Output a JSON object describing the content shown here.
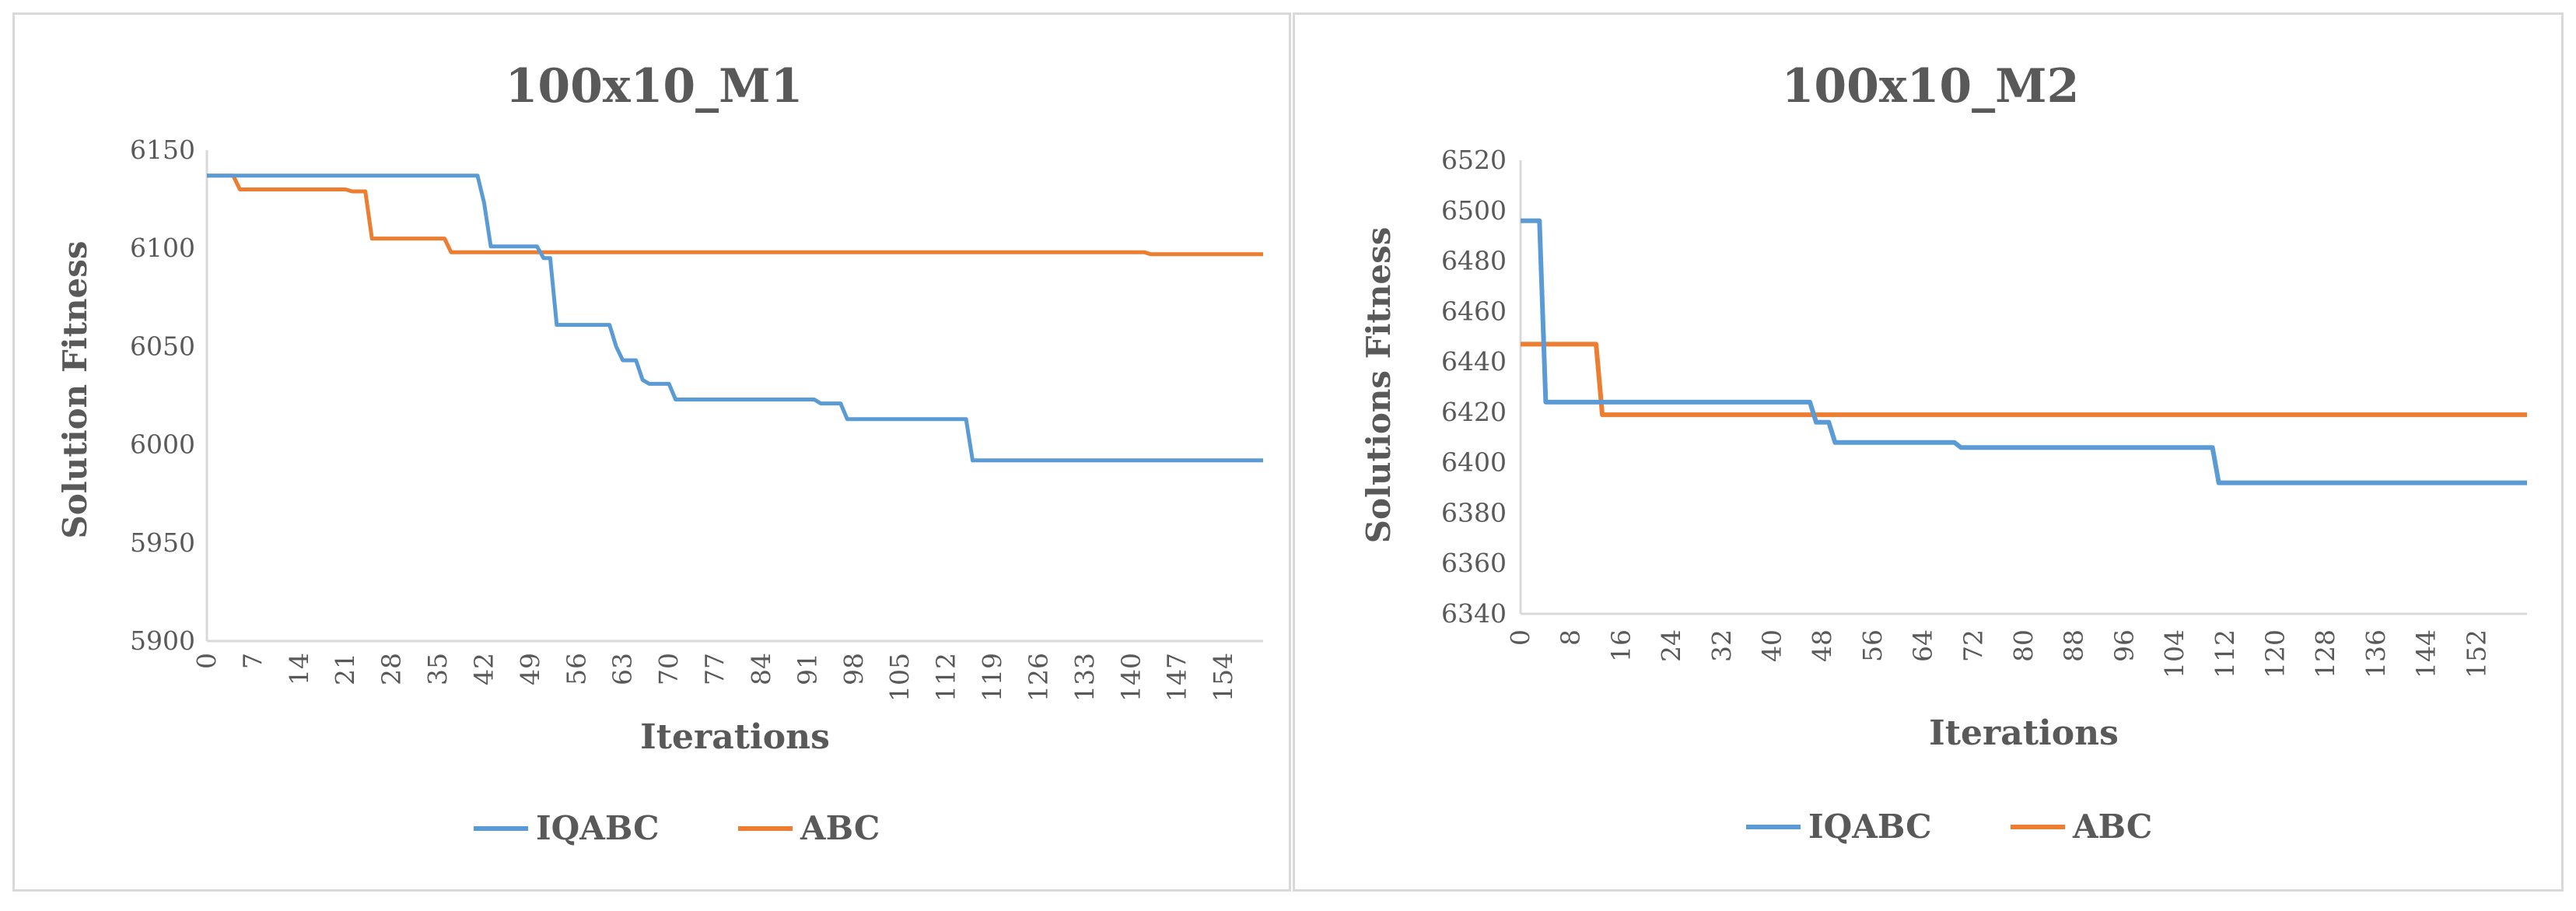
{
  "chart_data": [
    {
      "type": "line",
      "title": "100x10_M1",
      "xlabel": "Iterations",
      "ylabel": "Solution Fitness",
      "ylim": [
        5900,
        6150
      ],
      "y_ticks": [
        "5900",
        "5950",
        "6000",
        "6050",
        "6100",
        "6150"
      ],
      "x_ticks": [
        "0",
        "7",
        "14",
        "21",
        "28",
        "35",
        "42",
        "49",
        "56",
        "63",
        "70",
        "77",
        "84",
        "91",
        "98",
        "105",
        "112",
        "119",
        "126",
        "133",
        "140",
        "147",
        "154"
      ],
      "x_range": [
        0,
        160
      ],
      "grid": false,
      "legend": "bottom",
      "series": [
        {
          "name": "IQABC",
          "color": "#5b9bd5",
          "points": [
            [
              0,
              6137
            ],
            [
              41,
              6137
            ],
            [
              42,
              6123
            ],
            [
              43,
              6101
            ],
            [
              50,
              6101
            ],
            [
              51,
              6095
            ],
            [
              52,
              6095
            ],
            [
              53,
              6061
            ],
            [
              61,
              6061
            ],
            [
              62,
              6050
            ],
            [
              63,
              6043
            ],
            [
              65,
              6043
            ],
            [
              66,
              6033
            ],
            [
              67,
              6031
            ],
            [
              70,
              6031
            ],
            [
              71,
              6023
            ],
            [
              92,
              6023
            ],
            [
              93,
              6021
            ],
            [
              96,
              6021
            ],
            [
              97,
              6013
            ],
            [
              115,
              6013
            ],
            [
              116,
              5992
            ],
            [
              160,
              5992
            ]
          ]
        },
        {
          "name": "ABC",
          "color": "#ed7d31",
          "points": [
            [
              0,
              6137
            ],
            [
              4,
              6137
            ],
            [
              5,
              6130
            ],
            [
              21,
              6130
            ],
            [
              22,
              6129
            ],
            [
              24,
              6129
            ],
            [
              25,
              6105
            ],
            [
              36,
              6105
            ],
            [
              37,
              6098
            ],
            [
              142,
              6098
            ],
            [
              143,
              6097
            ],
            [
              160,
              6097
            ]
          ]
        }
      ]
    },
    {
      "type": "line",
      "title": "100x10_M2",
      "xlabel": "Iterations",
      "ylabel": "Solutions Fitness",
      "ylim": [
        6340,
        6520
      ],
      "y_ticks": [
        "6340",
        "6360",
        "6380",
        "6400",
        "6420",
        "6440",
        "6460",
        "6480",
        "6500",
        "6520"
      ],
      "x_ticks": [
        "0",
        "8",
        "16",
        "24",
        "32",
        "40",
        "48",
        "56",
        "64",
        "72",
        "80",
        "88",
        "96",
        "104",
        "112",
        "120",
        "128",
        "136",
        "144",
        "152"
      ],
      "x_range": [
        0,
        160
      ],
      "grid": false,
      "legend": "bottom",
      "series": [
        {
          "name": "IQABC",
          "color": "#5b9bd5",
          "points": [
            [
              0,
              6496
            ],
            [
              3,
              6496
            ],
            [
              4,
              6424
            ],
            [
              46,
              6424
            ],
            [
              47,
              6416
            ],
            [
              49,
              6416
            ],
            [
              50,
              6408
            ],
            [
              69,
              6408
            ],
            [
              70,
              6406
            ],
            [
              110,
              6406
            ],
            [
              111,
              6392
            ],
            [
              160,
              6392
            ]
          ]
        },
        {
          "name": "ABC",
          "color": "#ed7d31",
          "points": [
            [
              0,
              6447
            ],
            [
              12,
              6447
            ],
            [
              13,
              6419
            ],
            [
              160,
              6419
            ]
          ]
        }
      ]
    }
  ]
}
